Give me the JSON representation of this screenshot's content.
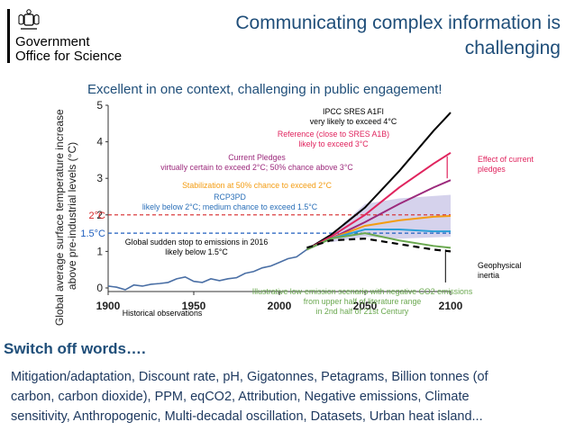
{
  "logo": {
    "line1": "Government",
    "line2": "Office for Science",
    "crest_icon": "royal-coat-of-arms-icon"
  },
  "header": {
    "title": "Communicating complex information is challenging",
    "subtitle": "Excellent in one context, challenging in public engagement!"
  },
  "chart_data": {
    "type": "line",
    "ylabel": "Global average surface temperature increase above pre-industrial levels (°C)",
    "xlabel": "",
    "xlim": [
      1900,
      2100
    ],
    "ylim": [
      0,
      5
    ],
    "xticks": [
      "1900",
      "1950",
      "2000",
      "2050",
      "2100"
    ],
    "yticks": [
      "0",
      "1",
      "2",
      "3",
      "4",
      "5"
    ],
    "reference_lines": [
      {
        "label": "2°C",
        "y": 2.0,
        "color": "#d62728"
      },
      {
        "label": "1.5°C",
        "y": 1.5,
        "color": "#1f5fbf"
      }
    ],
    "series": [
      {
        "key": "historical",
        "color": "#4a6fa5",
        "x": [
          1900,
          1905,
          1910,
          1915,
          1920,
          1925,
          1930,
          1935,
          1940,
          1945,
          1950,
          1955,
          1960,
          1965,
          1970,
          1975,
          1980,
          1985,
          1990,
          1995,
          2000,
          2005,
          2010,
          2016
        ],
        "y": [
          0.05,
          0.02,
          -0.05,
          0.08,
          0.05,
          0.1,
          0.12,
          0.15,
          0.25,
          0.3,
          0.18,
          0.15,
          0.25,
          0.2,
          0.25,
          0.28,
          0.4,
          0.45,
          0.55,
          0.6,
          0.7,
          0.8,
          0.85,
          1.05
        ]
      },
      {
        "key": "sres_a1fi",
        "color": "#000000",
        "x": [
          2016,
          2030,
          2050,
          2070,
          2090,
          2100
        ],
        "y": [
          1.05,
          1.45,
          2.2,
          3.2,
          4.3,
          4.8
        ]
      },
      {
        "key": "reference",
        "color": "#e0245e",
        "x": [
          2016,
          2030,
          2050,
          2070,
          2090,
          2100
        ],
        "y": [
          1.05,
          1.4,
          2.0,
          2.75,
          3.4,
          3.7
        ]
      },
      {
        "key": "current_pledges",
        "color": "#9c2a7c",
        "x": [
          2016,
          2030,
          2050,
          2070,
          2090,
          2100
        ],
        "y": [
          1.05,
          1.35,
          1.8,
          2.3,
          2.75,
          2.95
        ]
      },
      {
        "key": "stabilization_2c",
        "color": "#f39c12",
        "x": [
          2016,
          2030,
          2050,
          2070,
          2090,
          2100
        ],
        "y": [
          1.05,
          1.35,
          1.7,
          1.85,
          1.95,
          1.97
        ]
      },
      {
        "key": "rcp3pd",
        "color": "#2a9fd8",
        "x": [
          2016,
          2030,
          2050,
          2070,
          2090,
          2100
        ],
        "y": [
          1.05,
          1.35,
          1.6,
          1.6,
          1.55,
          1.55
        ]
      },
      {
        "key": "low_emission",
        "color": "#6aa84f",
        "x": [
          2016,
          2030,
          2050,
          2070,
          2090,
          2100
        ],
        "y": [
          1.05,
          1.35,
          1.5,
          1.3,
          1.15,
          1.1
        ]
      },
      {
        "key": "sudden_stop",
        "color": "#000000",
        "dashed": true,
        "x": [
          2016,
          2030,
          2050,
          2070,
          2090,
          2100
        ],
        "y": [
          1.1,
          1.3,
          1.35,
          1.2,
          1.05,
          1.0
        ]
      }
    ],
    "annotations": {
      "a1fi_1": "IPCC SRES A1FI",
      "a1fi_2": "very likely to exceed 4°C",
      "ref_1": "Reference (close to SRES A1B)",
      "ref_2": "likely to exceed 3°C",
      "pledge_1": "Current Pledges",
      "pledge_2": "virtually certain to exceed 2°C; 50% chance above 3°C",
      "stab": "Stabilization at 50% chance to exceed 2°C",
      "rcp_1": "RCP3PD",
      "rcp_2": "likely below 2°C; medium chance to exceed 1.5°C",
      "stop_1": "Global sudden stop to emissions in 2016",
      "stop_2": "likely below 1.5°C",
      "effect_1": "Effect of current",
      "effect_2": "pledges",
      "geo_1": "Geophysical",
      "geo_2": "inertia",
      "low_1": "Illustrative low-emission scenario with negative CO2 emissions",
      "low_2": "from upper half of literature range",
      "low_3": "in 2nd half of 21st Century",
      "hist": "Historical observations"
    }
  },
  "section": {
    "heading": "Switch off words….",
    "words_line1": "Mitigation/adaptation, Discount rate, pH, Gigatonnes, Petagrams, Billion tonnes (of",
    "words_line2": "carbon, carbon dioxide), PPM, eqCO2, Attribution, Negative emissions, Climate",
    "words_line3": "sensitivity, Anthropogenic, Multi-decadal oscillation, Datasets, Urban heat island..."
  }
}
